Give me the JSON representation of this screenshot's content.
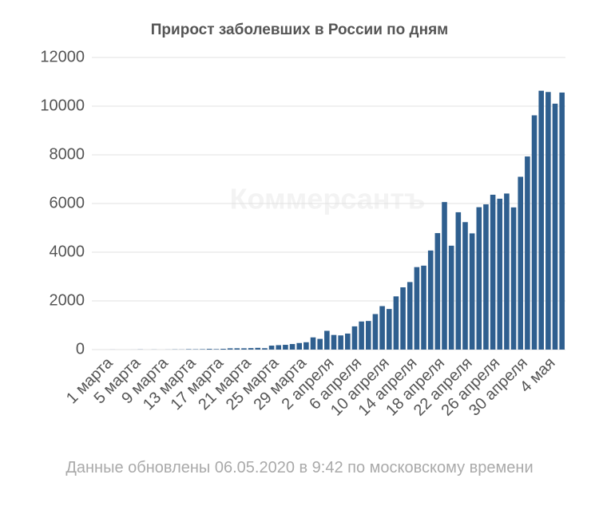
{
  "chart_data": {
    "type": "bar",
    "title": "Прирост заболевших в России по дням",
    "watermark": "Коммерсантъ",
    "note": "Данные обновлены 06.05.2020 в 9:42 по московскому времени",
    "categories": [
      "1 марта",
      null,
      null,
      null,
      "5 марта",
      null,
      null,
      null,
      "9 марта",
      null,
      null,
      null,
      "13 марта",
      null,
      null,
      null,
      "17 марта",
      null,
      null,
      null,
      "21 марта",
      null,
      null,
      null,
      "25 марта",
      null,
      null,
      null,
      "29 марта",
      null,
      null,
      null,
      "2 апреля",
      null,
      null,
      null,
      "6 апреля",
      null,
      null,
      null,
      "10 апреля",
      null,
      null,
      null,
      "14 апреля",
      null,
      null,
      null,
      "18 апреля",
      null,
      null,
      null,
      "22 апреля",
      null,
      null,
      null,
      "26 апреля",
      null,
      null,
      null,
      "30 апреля",
      null,
      null,
      null,
      "4 мая",
      null,
      null
    ],
    "values": [
      0,
      2,
      0,
      0,
      1,
      6,
      0,
      4,
      0,
      3,
      8,
      6,
      17,
      14,
      18,
      30,
      21,
      33,
      52,
      54,
      53,
      61,
      71,
      57,
      163,
      182,
      196,
      228,
      270,
      302,
      501,
      440,
      771,
      601,
      582,
      658,
      954,
      1154,
      1175,
      1459,
      1786,
      1667,
      2186,
      2558,
      2774,
      3388,
      3448,
      4070,
      4785,
      6060,
      4268,
      5642,
      5236,
      4774,
      5849,
      5966,
      6361,
      6198,
      6411,
      5841,
      7099,
      7933,
      9623,
      10633,
      10581,
      10102,
      10559
    ],
    "color": "#2f5f8f",
    "ylim": [
      0,
      12000
    ],
    "yticks": [
      0,
      2000,
      4000,
      6000,
      8000,
      10000,
      12000
    ],
    "grid": true
  }
}
